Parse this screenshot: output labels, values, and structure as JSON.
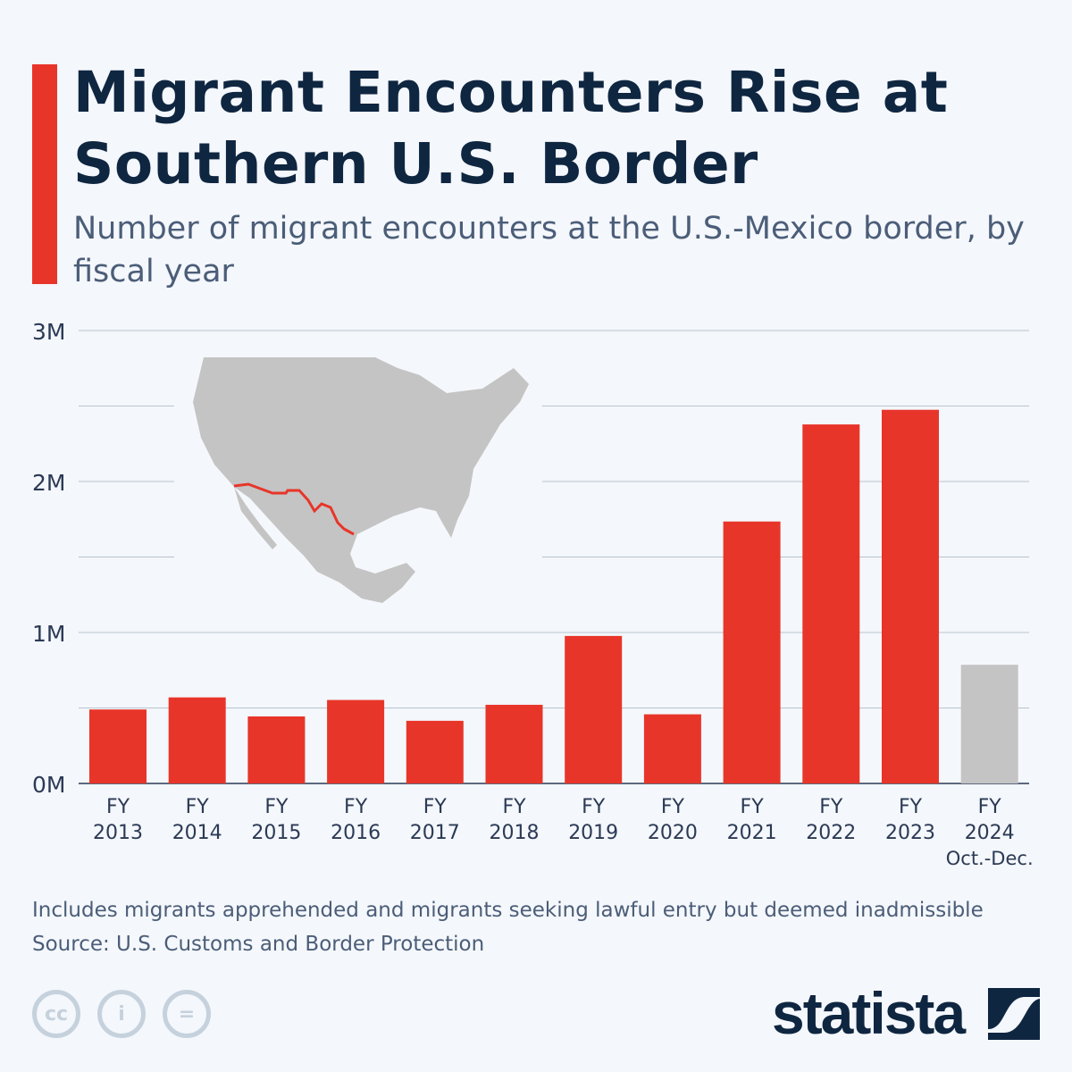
{
  "title": "Migrant Encounters Rise at Southern U.S. Border",
  "subtitle": "Number of migrant encounters at the U.S.-Mexico border, by fiscal year",
  "notes": {
    "note": "Includes migrants apprehended and migrants seeking lawful entry but deemed inadmissible",
    "source": "Source: U.S. Customs and Border Protection"
  },
  "brand": "statista",
  "license_icons": [
    "cc-icon",
    "attribution-icon",
    "no-derivatives-icon"
  ],
  "colors": {
    "accent": "#e8352a",
    "partial_year": "#c4c4c4",
    "title": "#0f2641",
    "text": "#4b5d78"
  },
  "chart_data": {
    "type": "bar",
    "categories": [
      "FY 2013",
      "FY 2014",
      "FY 2015",
      "FY 2016",
      "FY 2017",
      "FY 2018",
      "FY 2019",
      "FY 2020",
      "FY 2021",
      "FY 2022",
      "FY 2023",
      "FY 2024 Oct.-Dec."
    ],
    "category_lines": [
      [
        "FY",
        "2013"
      ],
      [
        "FY",
        "2014"
      ],
      [
        "FY",
        "2015"
      ],
      [
        "FY",
        "2016"
      ],
      [
        "FY",
        "2017"
      ],
      [
        "FY",
        "2018"
      ],
      [
        "FY",
        "2019"
      ],
      [
        "FY",
        "2020"
      ],
      [
        "FY",
        "2021"
      ],
      [
        "FY",
        "2022"
      ],
      [
        "FY",
        "2023"
      ],
      [
        "FY",
        "2024",
        "Oct.-Dec."
      ]
    ],
    "values": [
      490000,
      570000,
      444000,
      553000,
      415000,
      521000,
      977000,
      458000,
      1735000,
      2378000,
      2475000,
      786000
    ],
    "highlight_partial": [
      false,
      false,
      false,
      false,
      false,
      false,
      false,
      false,
      false,
      false,
      false,
      true
    ],
    "unit": "encounters",
    "ylim": [
      0,
      3000000
    ],
    "yticks": [
      0,
      1000000,
      2000000,
      3000000
    ],
    "ytick_labels": [
      "0M",
      "1M",
      "2M",
      "3M"
    ],
    "grid": true,
    "inset": "map of North America with U.S.-Mexico border highlighted in red"
  }
}
